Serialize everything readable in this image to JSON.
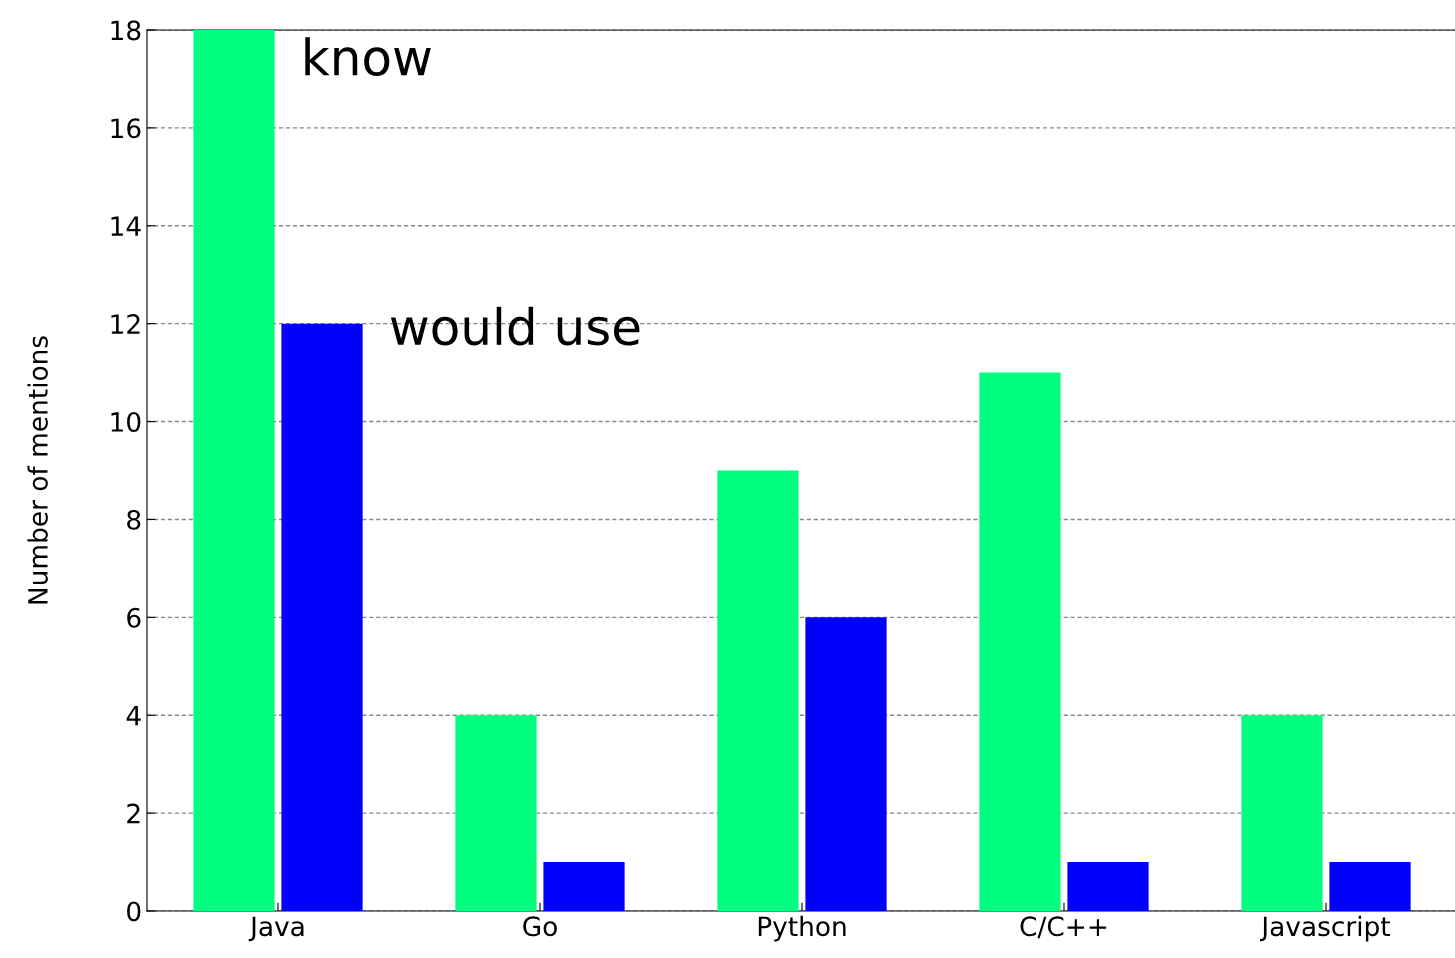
{
  "chart_data": {
    "type": "bar",
    "ylabel": "Number of mentions",
    "categories": [
      "Java",
      "Go",
      "Python",
      "C/C++",
      "Javascript"
    ],
    "series": [
      {
        "name": "know",
        "color": "#00ff7f",
        "values": [
          18,
          4,
          9,
          11,
          4
        ]
      },
      {
        "name": "would use",
        "color": "#0000ff",
        "values": [
          12,
          1,
          6,
          1,
          1
        ]
      }
    ],
    "ylim": [
      0,
      18
    ],
    "yticks": [
      0,
      2,
      4,
      6,
      8,
      10,
      12,
      14,
      16,
      18
    ],
    "grid": "y",
    "legend": false
  }
}
